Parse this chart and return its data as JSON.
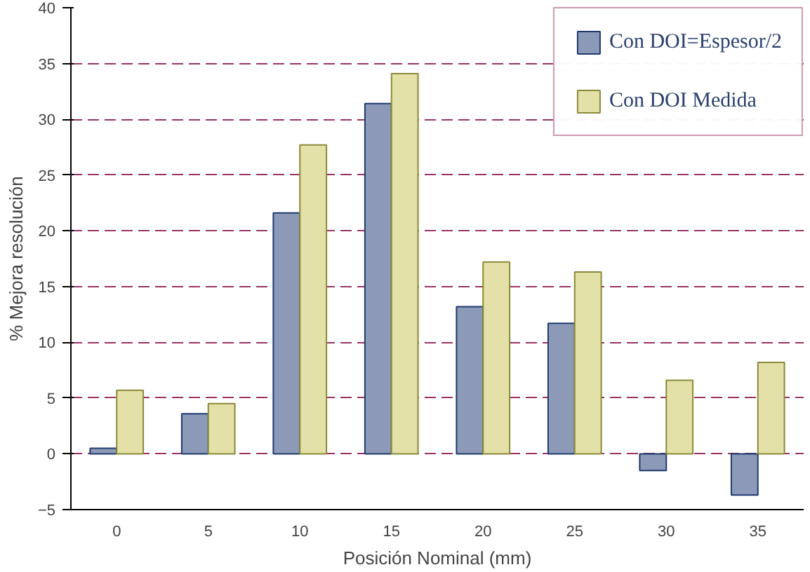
{
  "chart_data": {
    "type": "bar",
    "xlabel": "Posición Nominal (mm)",
    "ylabel": "% Mejora resolución",
    "categories": [
      "0",
      "5",
      "10",
      "15",
      "20",
      "25",
      "30",
      "35"
    ],
    "series": [
      {
        "name": "Con DOI=Espesor/2",
        "color": "#8c9ab8",
        "values": [
          0.5,
          3.6,
          21.6,
          31.4,
          13.2,
          11.7,
          -1.5,
          -3.7
        ]
      },
      {
        "name": "Con DOI Medida",
        "color": "#e3e0a8",
        "values": [
          5.7,
          4.5,
          27.7,
          34.1,
          17.2,
          16.3,
          6.6,
          8.2
        ]
      }
    ],
    "ylim": [
      -5,
      40
    ],
    "yticks": [
      -5,
      0,
      5,
      10,
      15,
      20,
      25,
      30,
      35,
      40
    ],
    "grid": "y",
    "legend": "top right"
  }
}
